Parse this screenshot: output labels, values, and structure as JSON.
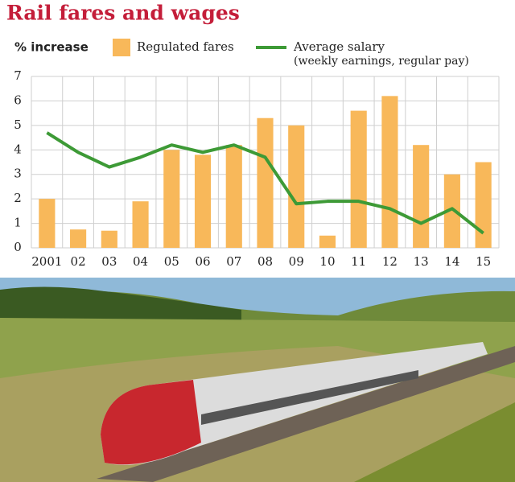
{
  "chart_data": {
    "type": "bar",
    "title": "Rail fares and wages",
    "y_label": "% increase",
    "legend_note": "(weekly earnings, regular pay)",
    "categories": [
      "2001",
      "02",
      "03",
      "04",
      "05",
      "06",
      "07",
      "08",
      "09",
      "10",
      "11",
      "12",
      "13",
      "14",
      "15"
    ],
    "series": [
      {
        "name": "Regulated fares",
        "type": "bar",
        "color": "#f8b85a",
        "values": [
          2.0,
          0.75,
          0.7,
          1.9,
          4.0,
          3.8,
          4.2,
          5.3,
          5.0,
          0.5,
          5.6,
          6.2,
          4.2,
          3.0,
          3.5
        ]
      },
      {
        "name": "Average salary",
        "type": "line",
        "color": "#3d9a36",
        "values": [
          4.7,
          3.9,
          3.3,
          3.7,
          4.2,
          3.9,
          4.2,
          3.7,
          1.8,
          1.9,
          1.9,
          1.6,
          1.0,
          1.6,
          0.6
        ]
      }
    ],
    "ylim": [
      0,
      7
    ],
    "yticks": [
      0,
      1,
      2,
      3,
      4,
      5,
      6,
      7
    ],
    "grid": true
  }
}
